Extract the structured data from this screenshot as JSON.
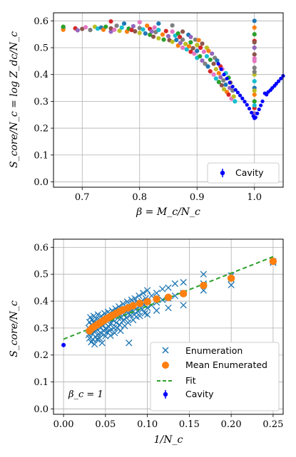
{
  "chart_data": [
    {
      "type": "scatter",
      "title": "",
      "xlabel": "β = M_c/N_c",
      "ylabel": "S_core/N_c = log Z_dc/N_c",
      "xlim": [
        0.65,
        1.05
      ],
      "ylim": [
        -0.02,
        0.63
      ],
      "xticks": [
        0.7,
        0.8,
        0.9,
        1.0
      ],
      "yticks": [
        0.0,
        0.1,
        0.2,
        0.3,
        0.4,
        0.5,
        0.6
      ],
      "grid": true,
      "legend_position": "bottom-right",
      "legend": [
        "Cavity"
      ],
      "colors": [
        "#1f77b4",
        "#ff7f0e",
        "#2ca02c",
        "#d62728",
        "#9467bd",
        "#8c564b",
        "#e377c2",
        "#7f7f7f",
        "#bcbd22",
        "#17becf"
      ],
      "cavity_color": "#0000ff",
      "enumeration_points": [
        [
          0.667,
          0.573
        ],
        [
          0.667,
          0.567
        ],
        [
          0.667,
          0.578
        ],
        [
          0.688,
          0.572
        ],
        [
          0.692,
          0.565
        ],
        [
          0.7,
          0.57
        ],
        [
          0.706,
          0.576
        ],
        [
          0.714,
          0.566
        ],
        [
          0.722,
          0.578
        ],
        [
          0.727,
          0.571
        ],
        [
          0.733,
          0.575
        ],
        [
          0.737,
          0.567
        ],
        [
          0.741,
          0.578
        ],
        [
          0.75,
          0.598
        ],
        [
          0.75,
          0.56
        ],
        [
          0.75,
          0.572
        ],
        [
          0.756,
          0.567
        ],
        [
          0.76,
          0.582
        ],
        [
          0.765,
          0.563
        ],
        [
          0.769,
          0.575
        ],
        [
          0.773,
          0.59
        ],
        [
          0.778,
          0.56
        ],
        [
          0.781,
          0.571
        ],
        [
          0.786,
          0.566
        ],
        [
          0.789,
          0.58
        ],
        [
          0.792,
          0.561
        ],
        [
          0.8,
          0.595
        ],
        [
          0.8,
          0.573
        ],
        [
          0.8,
          0.555
        ],
        [
          0.806,
          0.568
        ],
        [
          0.81,
          0.553
        ],
        [
          0.813,
          0.582
        ],
        [
          0.818,
          0.548
        ],
        [
          0.818,
          0.57
        ],
        [
          0.821,
          0.561
        ],
        [
          0.824,
          0.541
        ],
        [
          0.826,
          0.575
        ],
        [
          0.828,
          0.558
        ],
        [
          0.833,
          0.535
        ],
        [
          0.833,
          0.566
        ],
        [
          0.833,
          0.59
        ],
        [
          0.84,
          0.549
        ],
        [
          0.842,
          0.53
        ],
        [
          0.846,
          0.562
        ],
        [
          0.85,
          0.543
        ],
        [
          0.852,
          0.528
        ],
        [
          0.857,
          0.56
        ],
        [
          0.857,
          0.583
        ],
        [
          0.857,
          0.522
        ],
        [
          0.862,
          0.545
        ],
        [
          0.864,
          0.529
        ],
        [
          0.867,
          0.508
        ],
        [
          0.867,
          0.553
        ],
        [
          0.87,
          0.54
        ],
        [
          0.871,
          0.518
        ],
        [
          0.875,
          0.56
        ],
        [
          0.875,
          0.5
        ],
        [
          0.875,
          0.53
        ],
        [
          0.88,
          0.514
        ],
        [
          0.882,
          0.494
        ],
        [
          0.885,
          0.548
        ],
        [
          0.886,
          0.505
        ],
        [
          0.889,
          0.52
        ],
        [
          0.889,
          0.485
        ],
        [
          0.889,
          0.54
        ],
        [
          0.893,
          0.498
        ],
        [
          0.895,
          0.478
        ],
        [
          0.897,
          0.53
        ],
        [
          0.9,
          0.51
        ],
        [
          0.9,
          0.462
        ],
        [
          0.9,
          0.488
        ],
        [
          0.903,
          0.528
        ],
        [
          0.905,
          0.468
        ],
        [
          0.906,
          0.5
        ],
        [
          0.909,
          0.452
        ],
        [
          0.909,
          0.515
        ],
        [
          0.912,
          0.485
        ],
        [
          0.914,
          0.44
        ],
        [
          0.917,
          0.5
        ],
        [
          0.917,
          0.468
        ],
        [
          0.919,
          0.43
        ],
        [
          0.92,
          0.488
        ],
        [
          0.923,
          0.455
        ],
        [
          0.923,
          0.412
        ],
        [
          0.926,
          0.478
        ],
        [
          0.929,
          0.44
        ],
        [
          0.929,
          0.4
        ],
        [
          0.931,
          0.462
        ],
        [
          0.933,
          0.42
        ],
        [
          0.933,
          0.385
        ],
        [
          0.935,
          0.452
        ],
        [
          0.938,
          0.405
        ],
        [
          0.938,
          0.372
        ],
        [
          0.941,
          0.43
        ],
        [
          0.941,
          0.39
        ],
        [
          0.943,
          0.36
        ],
        [
          0.944,
          0.42
        ],
        [
          0.946,
          0.378
        ],
        [
          0.947,
          0.345
        ],
        [
          0.95,
          0.405
        ],
        [
          0.95,
          0.362
        ],
        [
          0.952,
          0.335
        ],
        [
          0.955,
          0.388
        ],
        [
          0.955,
          0.325
        ],
        [
          0.957,
          0.35
        ],
        [
          0.958,
          0.37
        ],
        [
          0.96,
          0.31
        ],
        [
          0.962,
          0.34
        ],
        [
          0.964,
          0.318
        ],
        [
          0.966,
          0.3
        ],
        [
          1.0,
          0.6
        ],
        [
          1.0,
          0.575
        ],
        [
          1.0,
          0.55
        ],
        [
          1.0,
          0.525
        ],
        [
          1.0,
          0.5
        ],
        [
          1.0,
          0.475
        ],
        [
          1.0,
          0.45
        ],
        [
          1.0,
          0.425
        ],
        [
          1.0,
          0.4
        ],
        [
          1.0,
          0.375
        ],
        [
          1.0,
          0.35
        ],
        [
          1.0,
          0.325
        ],
        [
          1.0,
          0.3
        ],
        [
          1.0,
          0.275
        ],
        [
          1.0,
          0.255
        ],
        [
          1.0,
          0.52
        ],
        [
          1.0,
          0.46
        ],
        [
          1.0,
          0.41
        ],
        [
          1.0,
          0.34
        ],
        [
          1.0,
          0.285
        ]
      ],
      "cavity_points": [
        [
          0.937,
          0.44
        ],
        [
          0.942,
          0.42
        ],
        [
          0.947,
          0.4
        ],
        [
          0.952,
          0.385
        ],
        [
          0.957,
          0.37
        ],
        [
          0.962,
          0.355
        ],
        [
          0.967,
          0.343
        ],
        [
          0.971,
          0.333
        ],
        [
          0.975,
          0.322
        ],
        [
          0.979,
          0.311
        ],
        [
          0.983,
          0.299
        ],
        [
          0.987,
          0.287
        ],
        [
          0.991,
          0.273
        ],
        [
          0.995,
          0.258
        ],
        [
          0.998,
          0.245
        ],
        [
          1.0,
          0.237
        ],
        [
          1.002,
          0.24
        ],
        [
          1.005,
          0.255
        ],
        [
          1.008,
          0.27
        ],
        [
          1.011,
          0.285
        ],
        [
          1.014,
          0.3
        ],
        [
          1.018,
          0.33
        ],
        [
          1.021,
          0.325
        ],
        [
          1.024,
          0.335
        ],
        [
          1.028,
          0.342
        ],
        [
          1.031,
          0.35
        ],
        [
          1.035,
          0.358
        ],
        [
          1.038,
          0.366
        ],
        [
          1.042,
          0.375
        ],
        [
          1.046,
          0.385
        ],
        [
          1.05,
          0.395
        ]
      ]
    },
    {
      "type": "scatter",
      "title": "",
      "xlabel": "1/N_c",
      "ylabel": "S_core/N_c",
      "xlim": [
        -0.012,
        0.262
      ],
      "ylim": [
        -0.02,
        0.63
      ],
      "xticks": [
        0.0,
        0.05,
        0.1,
        0.15,
        0.2,
        0.25
      ],
      "yticks": [
        0.0,
        0.1,
        0.2,
        0.3,
        0.4,
        0.5,
        0.6
      ],
      "grid": true,
      "legend_position": "bottom-right",
      "legend": [
        "Enumeration",
        "Mean Enumerated",
        "Fit",
        "Cavity"
      ],
      "annotation": "β_c = 1",
      "series_colors": {
        "enumeration": "#1f77b4",
        "mean": "#ff7f0e",
        "fit": "#2ca02c",
        "cavity": "#0000ff"
      },
      "enumeration_points": [
        [
          0.03,
          0.3
        ],
        [
          0.03,
          0.275
        ],
        [
          0.031,
          0.322
        ],
        [
          0.031,
          0.262
        ],
        [
          0.032,
          0.29
        ],
        [
          0.032,
          0.34
        ],
        [
          0.033,
          0.248
        ],
        [
          0.033,
          0.312
        ],
        [
          0.034,
          0.28
        ],
        [
          0.034,
          0.33
        ],
        [
          0.035,
          0.298
        ],
        [
          0.035,
          0.258
        ],
        [
          0.036,
          0.32
        ],
        [
          0.036,
          0.345
        ],
        [
          0.037,
          0.285
        ],
        [
          0.037,
          0.24
        ],
        [
          0.038,
          0.305
        ],
        [
          0.038,
          0.268
        ],
        [
          0.039,
          0.335
        ],
        [
          0.04,
          0.295
        ],
        [
          0.04,
          0.315
        ],
        [
          0.04,
          0.258
        ],
        [
          0.041,
          0.35
        ],
        [
          0.042,
          0.278
        ],
        [
          0.042,
          0.308
        ],
        [
          0.043,
          0.33
        ],
        [
          0.043,
          0.262
        ],
        [
          0.044,
          0.3
        ],
        [
          0.045,
          0.32
        ],
        [
          0.045,
          0.345
        ],
        [
          0.045,
          0.28
        ],
        [
          0.046,
          0.245
        ],
        [
          0.047,
          0.31
        ],
        [
          0.048,
          0.335
        ],
        [
          0.048,
          0.29
        ],
        [
          0.049,
          0.355
        ],
        [
          0.05,
          0.318
        ],
        [
          0.05,
          0.27
        ],
        [
          0.05,
          0.298
        ],
        [
          0.051,
          0.34
        ],
        [
          0.052,
          0.325
        ],
        [
          0.052,
          0.285
        ],
        [
          0.053,
          0.36
        ],
        [
          0.054,
          0.305
        ],
        [
          0.055,
          0.335
        ],
        [
          0.055,
          0.29
        ],
        [
          0.056,
          0.35
        ],
        [
          0.056,
          0.272
        ],
        [
          0.057,
          0.318
        ],
        [
          0.058,
          0.365
        ],
        [
          0.059,
          0.33
        ],
        [
          0.06,
          0.3
        ],
        [
          0.06,
          0.345
        ],
        [
          0.061,
          0.282
        ],
        [
          0.062,
          0.372
        ],
        [
          0.063,
          0.32
        ],
        [
          0.063,
          0.35
        ],
        [
          0.064,
          0.3
        ],
        [
          0.065,
          0.338
        ],
        [
          0.066,
          0.38
        ],
        [
          0.067,
          0.312
        ],
        [
          0.067,
          0.355
        ],
        [
          0.068,
          0.29
        ],
        [
          0.069,
          0.34
        ],
        [
          0.07,
          0.368
        ],
        [
          0.071,
          0.328
        ],
        [
          0.071,
          0.39
        ],
        [
          0.072,
          0.35
        ],
        [
          0.073,
          0.308
        ],
        [
          0.074,
          0.372
        ],
        [
          0.075,
          0.338
        ],
        [
          0.076,
          0.398
        ],
        [
          0.077,
          0.355
        ],
        [
          0.077,
          0.32
        ],
        [
          0.078,
          0.245
        ],
        [
          0.079,
          0.38
        ],
        [
          0.08,
          0.348
        ],
        [
          0.081,
          0.405
        ],
        [
          0.082,
          0.365
        ],
        [
          0.083,
          0.33
        ],
        [
          0.083,
          0.388
        ],
        [
          0.084,
          0.35
        ],
        [
          0.085,
          0.41
        ],
        [
          0.086,
          0.37
        ],
        [
          0.087,
          0.342
        ],
        [
          0.088,
          0.395
        ],
        [
          0.089,
          0.362
        ],
        [
          0.09,
          0.42
        ],
        [
          0.091,
          0.38
        ],
        [
          0.091,
          0.345
        ],
        [
          0.093,
          0.4
        ],
        [
          0.094,
          0.37
        ],
        [
          0.095,
          0.43
        ],
        [
          0.096,
          0.385
        ],
        [
          0.097,
          0.355
        ],
        [
          0.098,
          0.41
        ],
        [
          0.1,
          0.375
        ],
        [
          0.1,
          0.44
        ],
        [
          0.1,
          0.398
        ],
        [
          0.1,
          0.35
        ],
        [
          0.105,
          0.42
        ],
        [
          0.105,
          0.385
        ],
        [
          0.111,
          0.43
        ],
        [
          0.111,
          0.395
        ],
        [
          0.111,
          0.365
        ],
        [
          0.118,
          0.445
        ],
        [
          0.118,
          0.405
        ],
        [
          0.125,
          0.45
        ],
        [
          0.125,
          0.41
        ],
        [
          0.125,
          0.375
        ],
        [
          0.133,
          0.465
        ],
        [
          0.133,
          0.42
        ],
        [
          0.143,
          0.47
        ],
        [
          0.143,
          0.43
        ],
        [
          0.143,
          0.385
        ],
        [
          0.167,
          0.5
        ],
        [
          0.167,
          0.465
        ],
        [
          0.167,
          0.44
        ],
        [
          0.2,
          0.495
        ],
        [
          0.2,
          0.482
        ],
        [
          0.2,
          0.46
        ],
        [
          0.25,
          0.548
        ],
        [
          0.25,
          0.543
        ]
      ],
      "mean_points": [
        [
          0.031,
          0.29
        ],
        [
          0.034,
          0.3
        ],
        [
          0.037,
          0.306
        ],
        [
          0.04,
          0.312
        ],
        [
          0.043,
          0.318
        ],
        [
          0.045,
          0.322
        ],
        [
          0.048,
          0.328
        ],
        [
          0.05,
          0.333
        ],
        [
          0.053,
          0.338
        ],
        [
          0.056,
          0.343
        ],
        [
          0.059,
          0.348
        ],
        [
          0.063,
          0.355
        ],
        [
          0.067,
          0.362
        ],
        [
          0.071,
          0.368
        ],
        [
          0.077,
          0.375
        ],
        [
          0.083,
          0.383
        ],
        [
          0.091,
          0.392
        ],
        [
          0.1,
          0.398
        ],
        [
          0.111,
          0.408
        ],
        [
          0.125,
          0.414
        ],
        [
          0.143,
          0.428
        ],
        [
          0.167,
          0.458
        ],
        [
          0.2,
          0.485
        ],
        [
          0.25,
          0.548
        ]
      ],
      "fit": {
        "x": [
          0.0,
          0.25
        ],
        "y": [
          0.259,
          0.565
        ]
      },
      "cavity_points": [
        [
          0.0,
          0.237
        ]
      ]
    }
  ]
}
